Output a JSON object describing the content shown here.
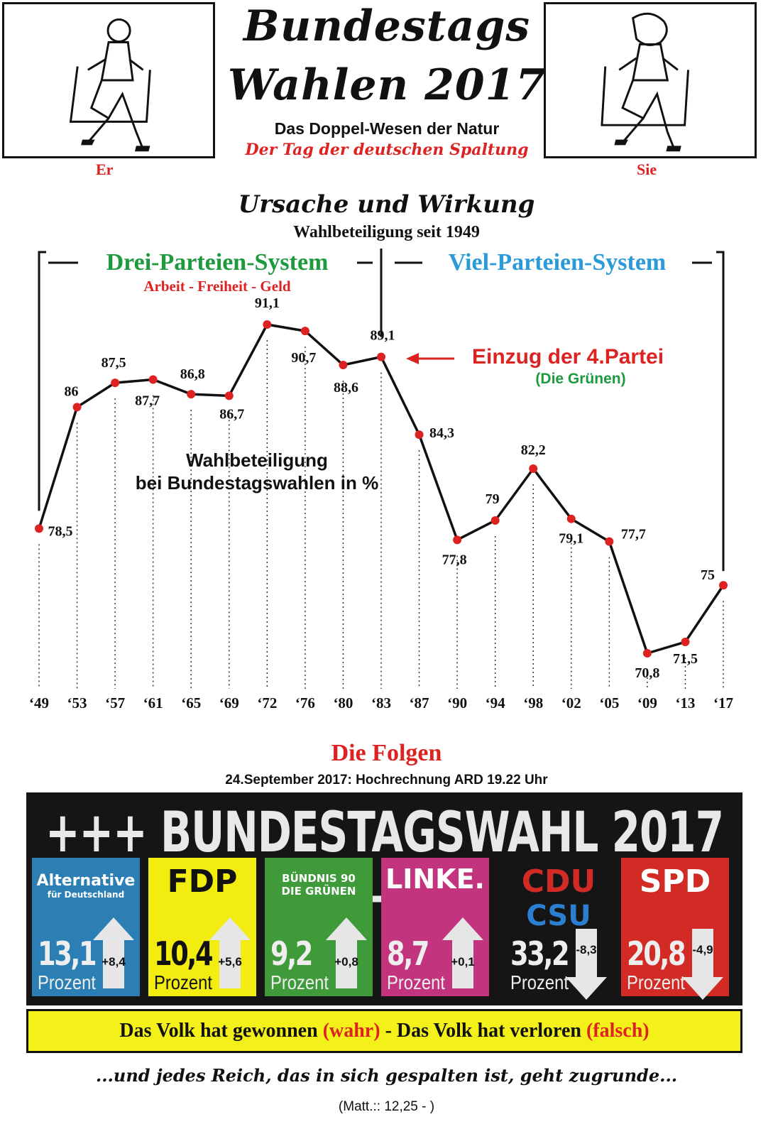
{
  "header": {
    "title_line1": "Bundestags",
    "title_line2": "Wahlen 2017",
    "subtitle": "Das Doppel-Wesen der Natur",
    "tagline": "Der Tag der deutschen Spaltung",
    "left_label": "Er",
    "right_label": "Sie"
  },
  "section": {
    "heading": "Ursache und Wirkung",
    "subheading": "Wahlbeteiligung seit 1949"
  },
  "chart_data": {
    "type": "line",
    "ylabel": "Wahlbeteiligung bei Bundestagswahlen in %",
    "ylabel_line1": "Wahlbeteiligung",
    "ylabel_line2": "bei Bundestagswahlen in %",
    "categories": [
      "‘49",
      "‘53",
      "‘57",
      "‘61",
      "‘65",
      "‘69",
      "‘72",
      "‘76",
      "‘80",
      "‘83",
      "‘87",
      "‘90",
      "‘94",
      "‘98",
      "‘02",
      "‘05",
      "‘09",
      "‘13",
      "‘17"
    ],
    "values": [
      78.5,
      86,
      87.5,
      87.7,
      86.8,
      86.7,
      91.1,
      90.7,
      88.6,
      89.1,
      84.3,
      77.8,
      79,
      82.2,
      79.1,
      77.7,
      70.8,
      71.5,
      75
    ],
    "value_labels": [
      "78,5",
      "86",
      "87,5",
      "87,7",
      "86,8",
      "86,7",
      "91,1",
      "90,7",
      "88,6",
      "89,1",
      "84,3",
      "77,8",
      "79",
      "82,2",
      "79,1",
      "77,7",
      "70,8",
      "71,5",
      "75"
    ],
    "ylim": [
      69,
      93
    ],
    "grid": false,
    "line_color": "#111111",
    "marker_color": "#dd2222",
    "period_left": {
      "label": "Drei-Parteien-System",
      "sub": "Arbeit - Freiheit - Geld",
      "color": "#1e9a3e"
    },
    "period_right": {
      "label": "Viel-Parteien-System",
      "color": "#2a9ad8"
    },
    "annotation": {
      "text": "Einzug der 4.Partei",
      "sub": "(Die Grünen)",
      "color": "#dd2222",
      "sub_color": "#1e9a3e"
    }
  },
  "results": {
    "heading": "Die Folgen",
    "subheading": "24.September 2017: Hochrechnung ARD 19.22 Uhr",
    "banner_title": "+++ BUNDESTAGSWAHL 2017 +++",
    "unit": "Prozent",
    "parties": [
      {
        "name": "Alternative",
        "sub": "für Deutschland",
        "percent": "13,1",
        "delta": "+8,4",
        "direction": "up",
        "color": "#2b7fb5"
      },
      {
        "name": "FDP",
        "percent": "10,4",
        "delta": "+5,6",
        "direction": "up",
        "color": "#f2ec10"
      },
      {
        "name": "BÜNDNIS 90",
        "sub": "DIE GRÜNEN",
        "percent": "9,2",
        "delta": "+0,8",
        "direction": "up",
        "color": "#3f9a3a"
      },
      {
        "name": "LINKE.",
        "percent": "8,7",
        "delta": "+0,1",
        "direction": "up",
        "color": "#c2347e"
      },
      {
        "name": "CDU",
        "sub": "CSU",
        "percent": "33,2",
        "delta": "-8,3",
        "direction": "down",
        "color": "#151515"
      },
      {
        "name": "SPD",
        "percent": "20,8",
        "delta": "-4,9",
        "direction": "down",
        "color": "#d22b26"
      }
    ]
  },
  "footer": {
    "part1": "Das Volk hat gewonnen ",
    "wahr": "(wahr)",
    "part2": " - Das Volk hat verloren ",
    "falsch": "(falsch)",
    "quote": "...und jedes Reich, das in sich gespalten ist, geht zugrunde...",
    "reference": "(Matt.:: 12,25 - )"
  }
}
